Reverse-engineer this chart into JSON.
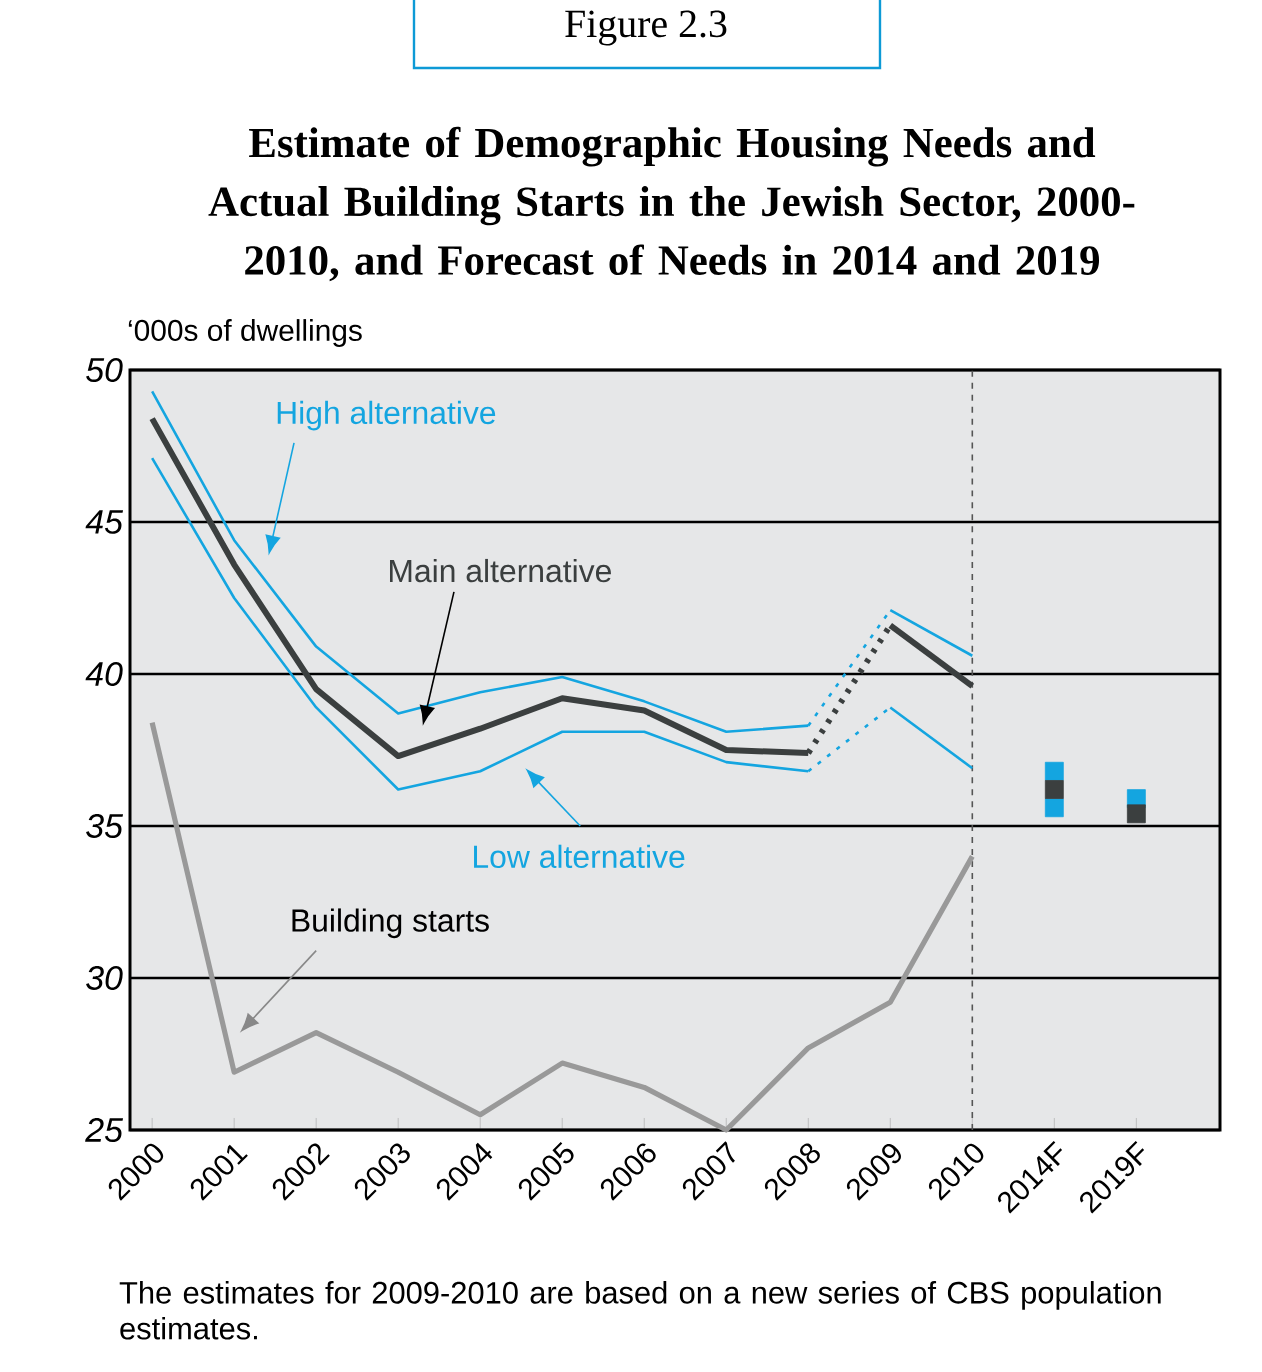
{
  "chart_data": {
    "type": "line",
    "title": "Estimate of Demographic Housing Needs and Actual Building Starts in the Jewish Sector, 2000-2010, and Forecast of Needs in 2014 and 2019",
    "ylabel": "‘000s of dwellings",
    "categories": [
      "2000",
      "2001",
      "2002",
      "2003",
      "2004",
      "2005",
      "2006",
      "2007",
      "2008",
      "2009",
      "2010",
      "2014F",
      "2019F"
    ],
    "ylim": [
      25,
      50
    ],
    "yticks": [
      25,
      30,
      35,
      40,
      45,
      50
    ],
    "grid": "y",
    "ref_lines": [
      {
        "axis": "x",
        "value": "2010",
        "color": "#555555",
        "line_style": "dashed"
      }
    ],
    "series": [
      {
        "name": "Main alternative",
        "type": "line",
        "color": "#3b3f3f",
        "values": [
          48.4,
          43.6,
          39.5,
          37.3,
          38.2,
          39.2,
          38.8,
          37.5,
          37.4,
          null,
          null,
          null,
          null
        ]
      },
      {
        "name": "High alternative",
        "type": "line",
        "color": "#14a5e0",
        "values": [
          49.3,
          44.4,
          40.9,
          38.7,
          39.4,
          39.9,
          39.1,
          38.1,
          38.3,
          null,
          null,
          null,
          null
        ]
      },
      {
        "name": "Low alternative",
        "type": "line",
        "color": "#14a5e0",
        "values": [
          47.1,
          42.5,
          38.9,
          36.2,
          36.8,
          38.1,
          38.1,
          37.1,
          36.8,
          null,
          null,
          null,
          null
        ]
      },
      {
        "name": "Building starts",
        "type": "line",
        "color": "#999999",
        "values": [
          38.4,
          26.9,
          28.2,
          26.9,
          25.5,
          27.2,
          26.4,
          25.0,
          27.7,
          29.2,
          34.0,
          null,
          null
        ]
      },
      {
        "type": "line",
        "line_style": "dotted",
        "color": "#3b3f3f",
        "values": [
          null,
          null,
          null,
          null,
          null,
          null,
          null,
          null,
          37.4,
          41.6,
          null,
          null,
          null
        ]
      },
      {
        "type": "line",
        "line_style": "dotted",
        "color": "#14a5e0",
        "values": [
          null,
          null,
          null,
          null,
          null,
          null,
          null,
          null,
          38.3,
          42.1,
          null,
          null,
          null
        ]
      },
      {
        "type": "line",
        "line_style": "dotted",
        "color": "#14a5e0",
        "values": [
          null,
          null,
          null,
          null,
          null,
          null,
          null,
          null,
          36.8,
          38.9,
          null,
          null,
          null
        ]
      },
      {
        "type": "line",
        "color": "#3b3f3f",
        "values": [
          null,
          null,
          null,
          null,
          null,
          null,
          null,
          null,
          null,
          41.6,
          39.6,
          null,
          null
        ]
      },
      {
        "type": "line",
        "color": "#14a5e0",
        "values": [
          null,
          null,
          null,
          null,
          null,
          null,
          null,
          null,
          null,
          42.1,
          40.6,
          null,
          null
        ]
      },
      {
        "type": "line",
        "color": "#14a5e0",
        "values": [
          null,
          null,
          null,
          null,
          null,
          null,
          null,
          null,
          null,
          38.9,
          36.9,
          null,
          null
        ]
      },
      {
        "type": "scatter",
        "marker": "square",
        "color": "#14a5e0",
        "values": [
          null,
          null,
          null,
          null,
          null,
          null,
          null,
          null,
          null,
          null,
          null,
          36.8,
          35.9
        ]
      },
      {
        "type": "scatter",
        "marker": "square",
        "color": "#14a5e0",
        "values": [
          null,
          null,
          null,
          null,
          null,
          null,
          null,
          null,
          null,
          null,
          null,
          35.6,
          null
        ]
      },
      {
        "type": "scatter",
        "marker": "square",
        "color": "#3b3f3f",
        "values": [
          null,
          null,
          null,
          null,
          null,
          null,
          null,
          null,
          null,
          null,
          null,
          36.2,
          35.4
        ]
      }
    ],
    "annotations": [
      "Figure 2.3",
      "The estimates for 2009-2010 are based on a new series of CBS population estimates."
    ]
  }
}
